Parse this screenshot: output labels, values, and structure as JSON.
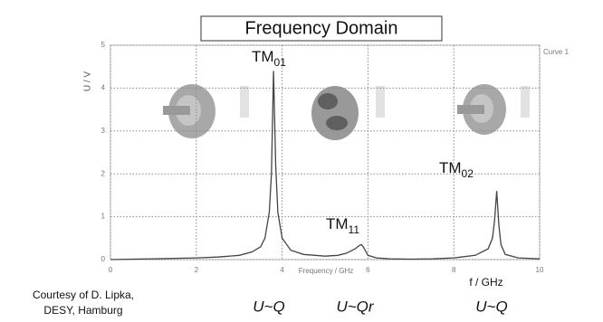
{
  "chart_data": {
    "type": "line",
    "title": "Frequency Domain",
    "x_label": "Frequency / GHz",
    "y_label": "U / V",
    "x_unit_label": "f / GHz",
    "legend_label": "Curve 1",
    "xlim": [
      0,
      10
    ],
    "xticks": [
      0,
      2,
      4,
      6,
      8,
      10
    ],
    "ylim": [
      0,
      5
    ],
    "yticks": [
      0,
      1,
      2,
      3,
      4,
      5
    ],
    "grid": true,
    "x": [
      0,
      0.5,
      1,
      1.5,
      2,
      2.5,
      3,
      3.3,
      3.5,
      3.6,
      3.7,
      3.75,
      3.8,
      3.85,
      3.9,
      4.0,
      4.2,
      4.5,
      5,
      5.3,
      5.5,
      5.7,
      5.8,
      5.85,
      5.9,
      6.0,
      6.2,
      6.5,
      7,
      7.5,
      8,
      8.5,
      8.8,
      8.9,
      8.95,
      9.0,
      9.05,
      9.1,
      9.2,
      9.5,
      10
    ],
    "series": [
      {
        "name": "Curve 1",
        "color": "#444444",
        "values": [
          0,
          0.01,
          0.02,
          0.03,
          0.04,
          0.06,
          0.1,
          0.18,
          0.3,
          0.5,
          1.1,
          2.0,
          4.4,
          2.2,
          1.1,
          0.5,
          0.22,
          0.12,
          0.08,
          0.1,
          0.15,
          0.25,
          0.33,
          0.35,
          0.28,
          0.1,
          0.04,
          0.02,
          0.01,
          0.02,
          0.04,
          0.1,
          0.25,
          0.5,
          0.9,
          1.6,
          0.8,
          0.35,
          0.12,
          0.04,
          0.02
        ]
      }
    ],
    "mode_labels": [
      {
        "text": "TM",
        "sub": "01"
      },
      {
        "text": "TM",
        "sub": "11"
      },
      {
        "text": "TM",
        "sub": "02"
      }
    ],
    "relations": [
      "U~Q",
      "U~Qr",
      "U~Q"
    ],
    "credit": [
      "Courtesy of D. Lipka,",
      "DESY, Hamburg"
    ]
  }
}
